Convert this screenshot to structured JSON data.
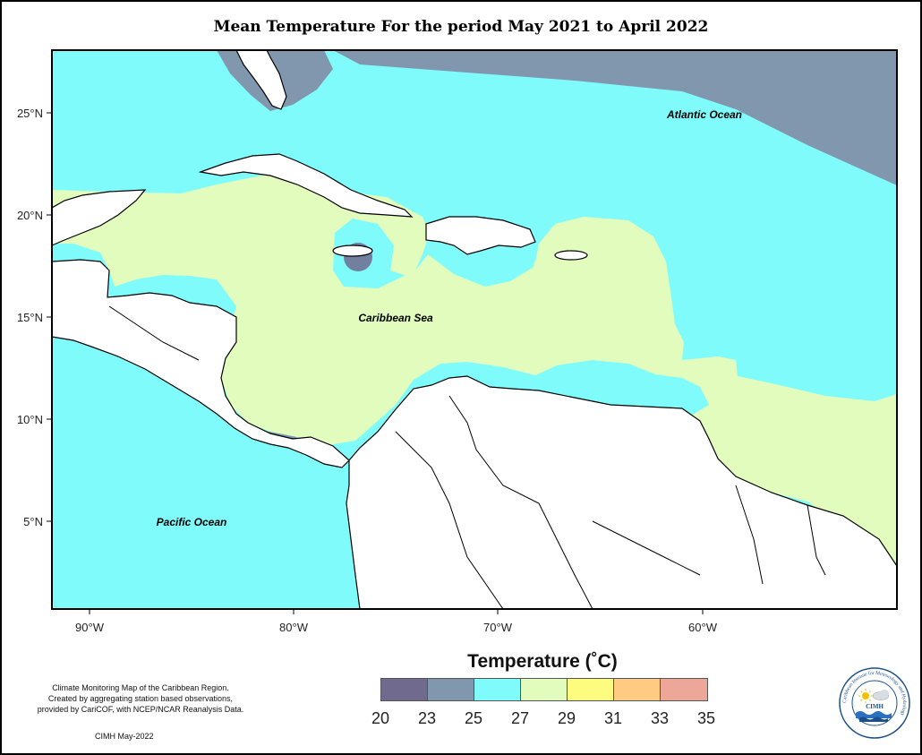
{
  "title": "Mean Temperature For the period May 2021 to April 2022",
  "map": {
    "region_labels": {
      "atlantic": "Atlantic Ocean",
      "caribbean": "Caribbean Sea",
      "pacific": "Pacific Ocean"
    },
    "lat_ticks": [
      "25°N",
      "20°N",
      "15°N",
      "10°N",
      "5°N"
    ],
    "lon_ticks": [
      "90°W",
      "80°W",
      "70°W",
      "60°W"
    ]
  },
  "legend": {
    "title": "Temperature (˚C)",
    "colors": [
      "#6f6a8e",
      "#8097ae",
      "#7ffbfc",
      "#e2fcbd",
      "#fdfc81",
      "#fdcb82",
      "#eda799"
    ],
    "ticks": [
      "20",
      "23",
      "25",
      "27",
      "29",
      "31",
      "33",
      "35"
    ]
  },
  "credit": {
    "line1": "Climate Monitoring Map of the Caribbean Region.",
    "line2": "Created by aggregating station based observations,",
    "line3": "provided by CariCOF, with NCEP/NCAR Reanalysis Data."
  },
  "footer": "CIMH May-2022",
  "logo": {
    "ring_text": "Caribbean Institute for Meteorology and Hydrology",
    "center_text": "CIMH"
  }
}
